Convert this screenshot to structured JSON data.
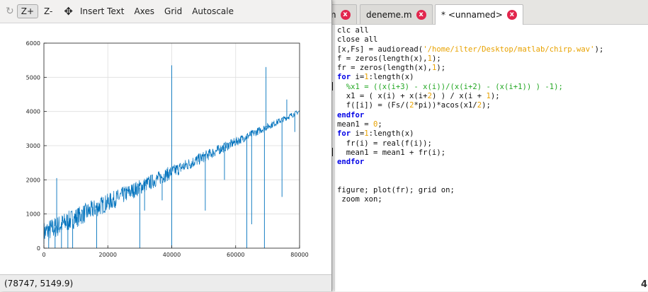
{
  "toolbar": {
    "rotate_icon": "rotate-icon",
    "zoom_in_label": "Z+",
    "zoom_out_label": "Z-",
    "pan_icon": "pan-move-icon",
    "insert_text_label": "Insert Text",
    "axes_label": "Axes",
    "grid_label": "Grid",
    "autoscale_label": "Autoscale"
  },
  "status": {
    "coordinates": "(78747, 5149.9)"
  },
  "chart_data": {
    "type": "line",
    "title": "",
    "xlabel": "",
    "ylabel": "",
    "xlim": [
      0,
      80000
    ],
    "ylim": [
      0,
      6000
    ],
    "xticks": [
      "0",
      "20000",
      "40000",
      "60000",
      "80000"
    ],
    "yticks": [
      "0",
      "1000",
      "2000",
      "3000",
      "4000",
      "5000",
      "6000"
    ],
    "grid": true,
    "series_color": "#0072bd",
    "series": [
      {
        "trend": {
          "x": [
            0,
            80000
          ],
          "y": [
            450,
            4000
          ]
        },
        "spikes_up": [
          {
            "x": 4000,
            "y": 2050
          },
          {
            "x": 40000,
            "y": 5350
          },
          {
            "x": 69500,
            "y": 5300
          },
          {
            "x": 76000,
            "y": 4350
          }
        ],
        "spikes_down": [
          {
            "x": 1500,
            "y": 0
          },
          {
            "x": 3500,
            "y": 0
          },
          {
            "x": 5500,
            "y": 0
          },
          {
            "x": 7500,
            "y": 0
          },
          {
            "x": 9000,
            "y": 0
          },
          {
            "x": 16500,
            "y": 0
          },
          {
            "x": 30000,
            "y": 0
          },
          {
            "x": 31500,
            "y": 1100
          },
          {
            "x": 37000,
            "y": 1400
          },
          {
            "x": 40000,
            "y": 0
          },
          {
            "x": 50500,
            "y": 1100
          },
          {
            "x": 56500,
            "y": 2000
          },
          {
            "x": 63500,
            "y": 0
          },
          {
            "x": 65000,
            "y": 700
          },
          {
            "x": 69000,
            "y": 0
          },
          {
            "x": 74500,
            "y": 1500
          },
          {
            "x": 78500,
            "y": 3400
          }
        ]
      }
    ]
  },
  "editor": {
    "tabs": [
      {
        "label": ".m"
      },
      {
        "label": "deneme.m"
      },
      {
        "label": "* <unnamed>"
      }
    ],
    "close_glyph": "x",
    "corner_glyph": "4",
    "code_lines": [
      [
        {
          "t": "clc all",
          "c": ""
        }
      ],
      [
        {
          "t": "close all",
          "c": ""
        }
      ],
      [
        {
          "t": "[x,Fs] = audioread(",
          "c": ""
        },
        {
          "t": "'/home/ilter/Desktop/matlab/chirp.wav'",
          "c": "str"
        },
        {
          "t": ");",
          "c": ""
        }
      ],
      [
        {
          "t": "f = zeros(length(x),",
          "c": ""
        },
        {
          "t": "1",
          "c": "num"
        },
        {
          "t": ");",
          "c": ""
        }
      ],
      [
        {
          "t": "fr = zeros(length(x),",
          "c": ""
        },
        {
          "t": "1",
          "c": "num"
        },
        {
          "t": ");",
          "c": ""
        }
      ],
      [
        {
          "t": "for",
          "c": "kw"
        },
        {
          "t": " i=",
          "c": ""
        },
        {
          "t": "1",
          "c": "num"
        },
        {
          "t": ":length(x)",
          "c": ""
        }
      ],
      [
        {
          "t": "  %x1 = ((x(i+3) - x(i))/(x(i+2) - (x(i+1)) ) -1);",
          "c": "cm"
        }
      ],
      [
        {
          "t": "  x1 = ( x(i) + x(i+",
          "c": ""
        },
        {
          "t": "2",
          "c": "num"
        },
        {
          "t": ") ) / x(i + ",
          "c": ""
        },
        {
          "t": "1",
          "c": "num"
        },
        {
          "t": ");",
          "c": ""
        }
      ],
      [
        {
          "t": "  f([i]) = (Fs/(",
          "c": ""
        },
        {
          "t": "2",
          "c": "num"
        },
        {
          "t": "*pi))*acos(x1/",
          "c": ""
        },
        {
          "t": "2",
          "c": "num"
        },
        {
          "t": ");",
          "c": ""
        }
      ],
      [
        {
          "t": "endfor",
          "c": "kw"
        }
      ],
      [
        {
          "t": "mean1 = ",
          "c": ""
        },
        {
          "t": "0",
          "c": "num"
        },
        {
          "t": ";",
          "c": ""
        }
      ],
      [
        {
          "t": "for",
          "c": "kw"
        },
        {
          "t": " i=",
          "c": ""
        },
        {
          "t": "1",
          "c": "num"
        },
        {
          "t": ":length(x)",
          "c": ""
        }
      ],
      [
        {
          "t": "  fr(i) = real(f(i));",
          "c": ""
        }
      ],
      [
        {
          "t": "  mean1 = mean1 + fr(i);",
          "c": ""
        }
      ],
      [
        {
          "t": "endfor",
          "c": "kw"
        }
      ],
      [
        {
          "t": "",
          "c": ""
        }
      ],
      [
        {
          "t": "",
          "c": ""
        }
      ],
      [
        {
          "t": "figure; plot(fr); grid on;",
          "c": ""
        }
      ],
      [
        {
          "t": " zoom xon;",
          "c": ""
        }
      ]
    ]
  }
}
